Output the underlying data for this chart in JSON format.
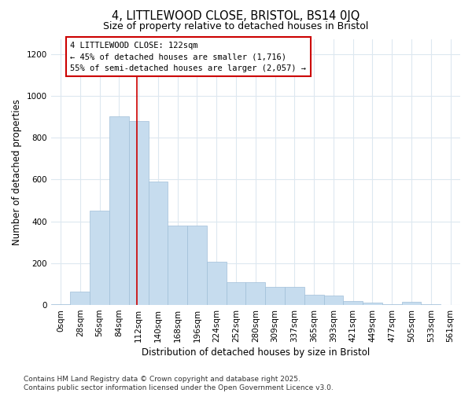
{
  "title_line1": "4, LITTLEWOOD CLOSE, BRISTOL, BS14 0JQ",
  "title_line2": "Size of property relative to detached houses in Bristol",
  "xlabel": "Distribution of detached houses by size in Bristol",
  "ylabel": "Number of detached properties",
  "bin_labels": [
    "0sqm",
    "28sqm",
    "56sqm",
    "84sqm",
    "112sqm",
    "140sqm",
    "168sqm",
    "196sqm",
    "224sqm",
    "252sqm",
    "280sqm",
    "309sqm",
    "337sqm",
    "365sqm",
    "393sqm",
    "421sqm",
    "449sqm",
    "477sqm",
    "505sqm",
    "533sqm",
    "561sqm"
  ],
  "bar_values": [
    5,
    65,
    450,
    900,
    880,
    590,
    380,
    380,
    205,
    110,
    110,
    85,
    85,
    50,
    47,
    20,
    10,
    5,
    15,
    5,
    2
  ],
  "bar_color": "#c6dcee",
  "bar_edgecolor": "#a0bfd8",
  "property_line_x": 4.43,
  "annotation_text": "4 LITTLEWOOD CLOSE: 122sqm\n← 45% of detached houses are smaller (1,716)\n55% of semi-detached houses are larger (2,057) →",
  "annotation_box_color": "#ffffff",
  "annotation_box_edgecolor": "#cc0000",
  "vline_color": "#cc0000",
  "ylim": [
    0,
    1270
  ],
  "yticks": [
    0,
    200,
    400,
    600,
    800,
    1000,
    1200
  ],
  "background_color": "#ffffff",
  "grid_color": "#dde8f0",
  "footer_text": "Contains HM Land Registry data © Crown copyright and database right 2025.\nContains public sector information licensed under the Open Government Licence v3.0.",
  "title_fontsize": 10.5,
  "subtitle_fontsize": 9.0,
  "tick_fontsize": 7.5,
  "label_fontsize": 8.5,
  "footer_fontsize": 6.5
}
